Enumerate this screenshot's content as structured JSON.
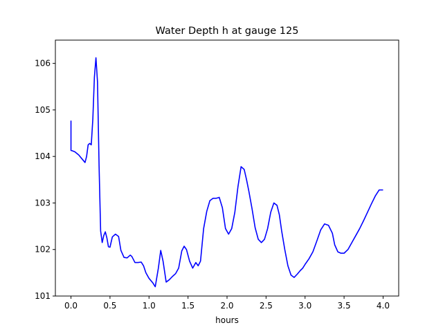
{
  "chart_data": {
    "type": "line",
    "title": "Water Depth h at gauge 125",
    "xlabel": "hours",
    "ylabel": "",
    "xlim": [
      -0.2,
      4.2
    ],
    "ylim": [
      101.0,
      106.5
    ],
    "xticks": [
      0.0,
      0.5,
      1.0,
      1.5,
      2.0,
      2.5,
      3.0,
      3.5,
      4.0
    ],
    "xtick_labels": [
      "0.0",
      "0.5",
      "1.0",
      "1.5",
      "2.0",
      "2.5",
      "3.0",
      "3.5",
      "4.0"
    ],
    "yticks": [
      101,
      102,
      103,
      104,
      105,
      106
    ],
    "ytick_labels": [
      "101",
      "102",
      "103",
      "104",
      "105",
      "106"
    ],
    "grid": false,
    "series": [
      {
        "color": "#0000ff",
        "x": [
          0.0,
          0.0,
          0.02,
          0.05,
          0.1,
          0.14,
          0.18,
          0.2,
          0.22,
          0.24,
          0.26,
          0.28,
          0.3,
          0.32,
          0.34,
          0.36,
          0.38,
          0.4,
          0.42,
          0.44,
          0.46,
          0.48,
          0.5,
          0.53,
          0.57,
          0.61,
          0.64,
          0.68,
          0.72,
          0.76,
          0.78,
          0.82,
          0.86,
          0.9,
          0.93,
          0.96,
          1.0,
          1.05,
          1.08,
          1.12,
          1.15,
          1.18,
          1.22,
          1.26,
          1.3,
          1.34,
          1.38,
          1.42,
          1.45,
          1.48,
          1.52,
          1.56,
          1.6,
          1.63,
          1.66,
          1.7,
          1.74,
          1.78,
          1.82,
          1.86,
          1.9,
          1.94,
          1.98,
          2.02,
          2.06,
          2.1,
          2.14,
          2.18,
          2.22,
          2.25,
          2.28,
          2.32,
          2.36,
          2.4,
          2.44,
          2.48,
          2.52,
          2.56,
          2.6,
          2.64,
          2.67,
          2.7,
          2.74,
          2.78,
          2.82,
          2.86,
          2.9,
          2.94,
          2.97,
          3.0,
          3.05,
          3.1,
          3.15,
          3.2,
          3.25,
          3.3,
          3.35,
          3.38,
          3.42,
          3.46,
          3.5,
          3.55,
          3.6,
          3.65,
          3.7,
          3.75,
          3.8,
          3.85,
          3.9,
          3.95,
          4.0
        ],
        "y": [
          104.77,
          104.13,
          104.12,
          104.1,
          104.03,
          103.95,
          103.87,
          104.0,
          104.25,
          104.28,
          104.25,
          104.8,
          105.7,
          106.12,
          105.6,
          103.8,
          102.4,
          102.15,
          102.3,
          102.38,
          102.25,
          102.06,
          102.05,
          102.27,
          102.33,
          102.28,
          101.98,
          101.83,
          101.82,
          101.88,
          101.85,
          101.72,
          101.72,
          101.73,
          101.65,
          101.5,
          101.38,
          101.28,
          101.2,
          101.6,
          101.98,
          101.75,
          101.3,
          101.35,
          101.42,
          101.48,
          101.6,
          101.97,
          102.07,
          102.0,
          101.75,
          101.6,
          101.72,
          101.65,
          101.75,
          102.45,
          102.82,
          103.05,
          103.1,
          103.1,
          103.12,
          102.9,
          102.45,
          102.33,
          102.45,
          102.8,
          103.35,
          103.78,
          103.72,
          103.5,
          103.25,
          102.88,
          102.47,
          102.22,
          102.15,
          102.22,
          102.45,
          102.8,
          103.0,
          102.95,
          102.75,
          102.4,
          102.0,
          101.65,
          101.45,
          101.4,
          101.47,
          101.55,
          101.6,
          101.68,
          101.8,
          101.95,
          102.18,
          102.42,
          102.55,
          102.52,
          102.35,
          102.1,
          101.95,
          101.92,
          101.92,
          102.0,
          102.15,
          102.3,
          102.45,
          102.62,
          102.8,
          102.98,
          103.15,
          103.28,
          103.28
        ]
      }
    ]
  }
}
